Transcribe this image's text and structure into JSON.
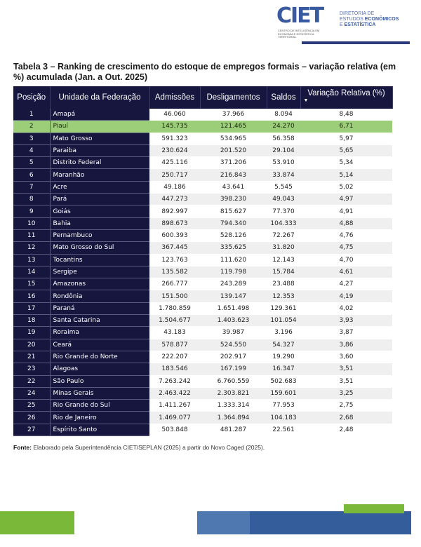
{
  "header": {
    "logo_text": "CIET",
    "logo_subtitle": "CENTRO DE INTELIGÊNCIA EM ECONOMIA E ESTATÍSTICA TERRITORIAL",
    "directorate_line1": "DIRETORIA DE",
    "directorate_line2a": "ESTUDOS ",
    "directorate_line2b": "ECONÔMICOS",
    "directorate_line3a": "E ",
    "directorate_line3b": "ESTATÍSTICA"
  },
  "title": "Tabela 3 – Ranking de crescimento do estoque de empregos formais – variação relativa (em %) acumulada (Jan. a Out. 2025)",
  "table": {
    "columns": [
      "Posição",
      "Unidade da Federação",
      "Admissões",
      "Desligamentos",
      "Saldos",
      "Variação Relativa (%)"
    ],
    "sort_column": "Variação Relativa (%)",
    "sort_direction": "descending",
    "highlight_color": "#9ccd78",
    "highlight_row": "Piauí",
    "rows": [
      [
        "1",
        "Amapá",
        "46.060",
        "37.966",
        "8.094",
        "8,48"
      ],
      [
        "2",
        "Piauí",
        "145.735",
        "121.465",
        "24.270",
        "6,71"
      ],
      [
        "3",
        "Mato Grosso",
        "591.323",
        "534.965",
        "56.358",
        "5,97"
      ],
      [
        "4",
        "Paraiba",
        "230.624",
        "201.520",
        "29.104",
        "5,65"
      ],
      [
        "5",
        "Distrito Federal",
        "425.116",
        "371.206",
        "53.910",
        "5,34"
      ],
      [
        "6",
        "Maranhão",
        "250.717",
        "216.843",
        "33.874",
        "5,14"
      ],
      [
        "7",
        "Acre",
        "49.186",
        "43.641",
        "5.545",
        "5,02"
      ],
      [
        "8",
        "Pará",
        "447.273",
        "398.230",
        "49.043",
        "4,97"
      ],
      [
        "9",
        "Goiás",
        "892.997",
        "815.627",
        "77.370",
        "4,91"
      ],
      [
        "10",
        "Bahia",
        "898.673",
        "794.340",
        "104.333",
        "4,88"
      ],
      [
        "11",
        "Pernambuco",
        "600.393",
        "528.126",
        "72.267",
        "4,76"
      ],
      [
        "12",
        "Mato Grosso do Sul",
        "367.445",
        "335.625",
        "31.820",
        "4,75"
      ],
      [
        "13",
        "Tocantins",
        "123.763",
        "111.620",
        "12.143",
        "4,70"
      ],
      [
        "14",
        "Sergipe",
        "135.582",
        "119.798",
        "15.784",
        "4,61"
      ],
      [
        "15",
        "Amazonas",
        "266.777",
        "243.289",
        "23.488",
        "4,27"
      ],
      [
        "16",
        "Rondônia",
        "151.500",
        "139.147",
        "12.353",
        "4,19"
      ],
      [
        "17",
        "Paraná",
        "1.780.859",
        "1.651.498",
        "129.361",
        "4,02"
      ],
      [
        "18",
        "Santa Catarina",
        "1.504.677",
        "1.403.623",
        "101.054",
        "3,93"
      ],
      [
        "19",
        "Roraima",
        "43.183",
        "39.987",
        "3.196",
        "3,87"
      ],
      [
        "20",
        "Ceará",
        "578.877",
        "524.550",
        "54.327",
        "3,86"
      ],
      [
        "21",
        "Rio Grande do Norte",
        "222.207",
        "202.917",
        "19.290",
        "3,60"
      ],
      [
        "23",
        "Alagoas",
        "183.546",
        "167.199",
        "16.347",
        "3,51"
      ],
      [
        "22",
        "São Paulo",
        "7.263.242",
        "6.760.559",
        "502.683",
        "3,51"
      ],
      [
        "24",
        "Minas Gerais",
        "2.463.422",
        "2.303.821",
        "159.601",
        "3,25"
      ],
      [
        "25",
        "Rio Grande do Sul",
        "1.411.267",
        "1.333.314",
        "77.953",
        "2,75"
      ],
      [
        "26",
        "Rio de Janeiro",
        "1.469.077",
        "1.364.894",
        "104.183",
        "2,68"
      ],
      [
        "27",
        "Espírito Santo",
        "503.848",
        "481.287",
        "22.561",
        "2,48"
      ]
    ]
  },
  "source": {
    "label": "Fonte:",
    "text": " Elaborado pela Superintendência CIET/SEPLAN (2025) a partir do Novo Caged (2025)."
  },
  "colors": {
    "header_bg": "#16163f",
    "accent_green": "#7ab83a",
    "accent_blue": "#345d9c",
    "accent_blue_light": "#4f77b0"
  }
}
